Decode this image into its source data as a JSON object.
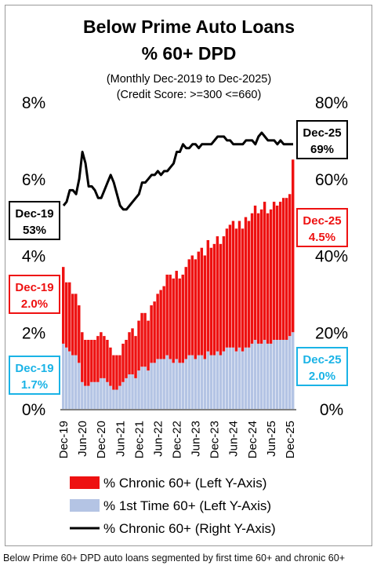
{
  "caption": "Below Prime 60+ DPD auto loans segmented by first time 60+ and chronic 60+",
  "chart_data": {
    "type": "bar",
    "title": [
      "Below Prime Auto Loans",
      "% 60+ DPD"
    ],
    "subtitle": [
      "(Monthly Dec-2019 to Dec-2025)",
      "(Credit Score: >=300 <=660)"
    ],
    "x_tick_labels": [
      "Dec-19",
      "Jun-20",
      "Dec-20",
      "Jun-21",
      "Dec-21",
      "Jun-22",
      "Dec-22",
      "Jun-23",
      "Dec-23",
      "Jun-24",
      "Dec-24",
      "Jun-25",
      "Dec-25"
    ],
    "left_axis": {
      "ticks": [
        "0%",
        "2%",
        "4%",
        "6%",
        "8%"
      ],
      "ylim": [
        0,
        8
      ]
    },
    "right_axis": {
      "ticks": [
        "0%",
        "20%",
        "40%",
        "60%",
        "80%"
      ],
      "ylim": [
        0,
        80
      ]
    },
    "series": [
      {
        "name": "% Chronic 60+ (Left Y-Axis)",
        "type": "stacked-bar",
        "color": "#ee1111",
        "values": [
          2.0,
          1.7,
          1.8,
          1.6,
          1.6,
          1.5,
          1.3,
          1.2,
          1.2,
          1.1,
          1.1,
          1.2,
          1.2,
          1.1,
          1.1,
          1.0,
          0.9,
          0.9,
          0.8,
          1.0,
          1.0,
          1.1,
          1.2,
          1.1,
          1.3,
          1.4,
          1.4,
          1.3,
          1.5,
          1.6,
          1.7,
          1.8,
          1.9,
          2.1,
          2.2,
          2.2,
          2.3,
          2.2,
          2.3,
          2.4,
          2.5,
          2.6,
          2.6,
          2.7,
          2.8,
          2.7,
          2.9,
          2.8,
          2.9,
          3.0,
          2.9,
          3.0,
          3.1,
          3.2,
          3.3,
          3.2,
          3.3,
          3.2,
          3.4,
          3.3,
          3.4,
          3.5,
          3.4,
          3.5,
          3.6,
          3.4,
          3.5,
          3.6,
          3.5,
          3.6,
          3.7,
          3.7,
          3.7,
          4.5
        ]
      },
      {
        "name": "% 1st Time 60+ (Left Y-Axis)",
        "type": "stacked-bar",
        "color": "#b4c4e4",
        "values": [
          1.7,
          1.6,
          1.5,
          1.4,
          1.4,
          1.2,
          0.7,
          0.6,
          0.6,
          0.7,
          0.7,
          0.7,
          0.8,
          0.8,
          0.7,
          0.6,
          0.5,
          0.5,
          0.6,
          0.7,
          0.8,
          0.9,
          0.9,
          0.8,
          1.0,
          1.1,
          1.1,
          1.0,
          1.2,
          1.2,
          1.3,
          1.3,
          1.3,
          1.4,
          1.3,
          1.2,
          1.3,
          1.2,
          1.2,
          1.3,
          1.4,
          1.4,
          1.3,
          1.4,
          1.4,
          1.3,
          1.5,
          1.4,
          1.4,
          1.5,
          1.4,
          1.5,
          1.6,
          1.6,
          1.6,
          1.5,
          1.6,
          1.5,
          1.6,
          1.6,
          1.7,
          1.8,
          1.7,
          1.7,
          1.8,
          1.7,
          1.7,
          1.8,
          1.8,
          1.8,
          1.8,
          1.8,
          1.9,
          2.0
        ]
      },
      {
        "name": "% Chronic 60+ (Right Y-Axis)",
        "type": "line",
        "color": "#000000",
        "values": [
          53,
          54,
          57,
          57,
          56,
          60,
          67,
          64,
          58,
          58,
          57,
          55,
          55,
          57,
          59,
          61,
          59,
          56,
          53,
          52,
          52,
          53,
          54,
          55,
          56,
          59,
          59,
          60,
          61,
          61,
          62,
          61,
          62,
          62,
          63,
          64,
          67,
          67,
          69,
          68,
          68,
          69,
          69,
          68,
          69,
          69,
          69,
          69,
          70,
          71,
          71,
          71,
          70,
          70,
          69,
          69,
          69,
          69,
          70,
          70,
          70,
          69,
          71,
          72,
          71,
          70,
          70,
          70,
          69,
          70,
          69,
          69,
          69,
          69
        ]
      }
    ],
    "callouts": {
      "left_line": {
        "top": "Dec-19",
        "bottom": "53%",
        "color": "#000000"
      },
      "left_chronic": {
        "top": "Dec-19",
        "bottom": "2.0%",
        "color": "#ee1111"
      },
      "left_first": {
        "top": "Dec-19",
        "bottom": "1.7%",
        "color": "#1ab3e6"
      },
      "right_line": {
        "top": "Dec-25",
        "bottom": "69%",
        "color": "#000000"
      },
      "right_chronic": {
        "top": "Dec-25",
        "bottom": "4.5%",
        "color": "#ee1111"
      },
      "right_first": {
        "top": "Dec-25",
        "bottom": "2.0%",
        "color": "#1ab3e6"
      }
    },
    "grid": false,
    "legend_position": "bottom"
  }
}
